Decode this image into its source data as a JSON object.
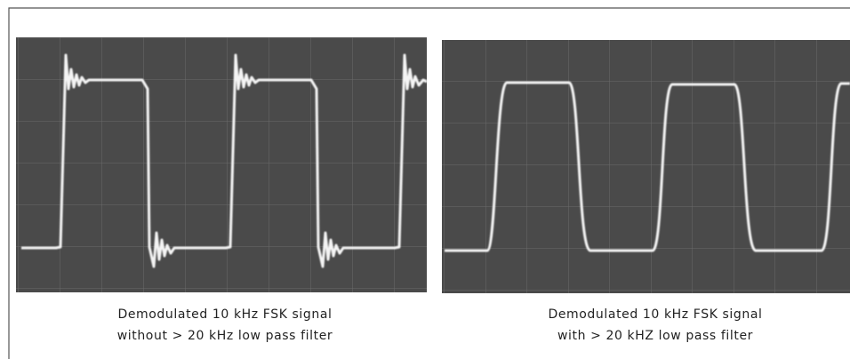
{
  "figures": [
    {
      "caption_lines": [
        "Demodulated 10 kHz FSK signal",
        "without > 20 kHz low pass filter"
      ]
    },
    {
      "caption_lines": [
        "Demodulated 10 kHz FSK signal",
        "with > 20 kHZ low pass filter"
      ]
    }
  ]
}
